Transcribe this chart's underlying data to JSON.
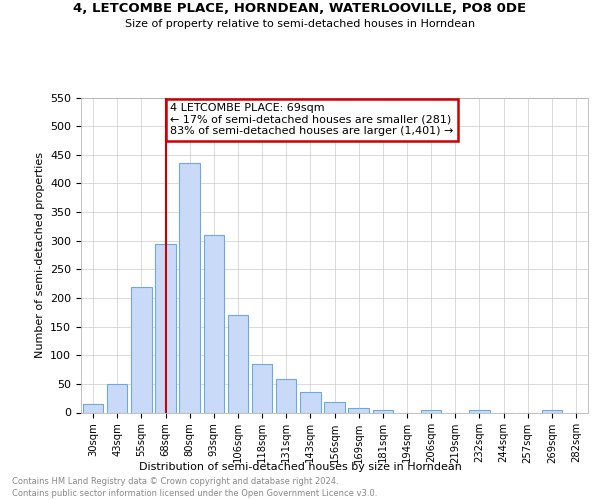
{
  "title": "4, LETCOMBE PLACE, HORNDEAN, WATERLOOVILLE, PO8 0DE",
  "subtitle": "Size of property relative to semi-detached houses in Horndean",
  "xlabel": "Distribution of semi-detached houses by size in Horndean",
  "ylabel": "Number of semi-detached properties",
  "footer1": "Contains HM Land Registry data © Crown copyright and database right 2024.",
  "footer2": "Contains public sector information licensed under the Open Government Licence v3.0.",
  "annotation_line1": "4 LETCOMBE PLACE: 69sqm",
  "annotation_line2": "← 17% of semi-detached houses are smaller (281)",
  "annotation_line3": "83% of semi-detached houses are larger (1,401) →",
  "categories": [
    "30sqm",
    "43sqm",
    "55sqm",
    "68sqm",
    "80sqm",
    "93sqm",
    "106sqm",
    "118sqm",
    "131sqm",
    "143sqm",
    "156sqm",
    "169sqm",
    "181sqm",
    "194sqm",
    "206sqm",
    "219sqm",
    "232sqm",
    "244sqm",
    "257sqm",
    "269sqm",
    "282sqm"
  ],
  "values": [
    15,
    50,
    220,
    295,
    435,
    310,
    170,
    85,
    58,
    35,
    18,
    8,
    5,
    0,
    5,
    0,
    5,
    0,
    0,
    5,
    0
  ],
  "bar_color": "#c9daf8",
  "bar_edge_color": "#6fa8dc",
  "marker_line_color": "#cc0000",
  "annotation_box_edge_color": "#cc0000",
  "marker_index": 3,
  "ylim": [
    0,
    550
  ],
  "yticks": [
    0,
    50,
    100,
    150,
    200,
    250,
    300,
    350,
    400,
    450,
    500,
    550
  ],
  "background_color": "#ffffff",
  "grid_color": "#cccccc"
}
